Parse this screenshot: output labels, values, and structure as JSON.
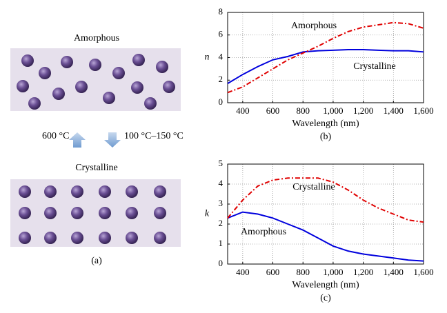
{
  "diagram": {
    "top_label": "Amorphous",
    "bottom_label": "Crystalline",
    "heat_label": "600 °C",
    "cool_label": "100 °C–150 °C",
    "caption": "(a)"
  },
  "chart_data": [
    {
      "type": "line",
      "caption": "(b)",
      "xlabel": "Wavelength (nm)",
      "ylabel": "n",
      "x": [
        300,
        400,
        500,
        600,
        700,
        800,
        900,
        1000,
        1100,
        1200,
        1300,
        1400,
        1500,
        1600
      ],
      "series": [
        {
          "name": "Amorphous",
          "color": "#0000dd",
          "style": "solid",
          "values": [
            1.7,
            2.5,
            3.2,
            3.8,
            4.1,
            4.5,
            4.6,
            4.65,
            4.7,
            4.7,
            4.65,
            4.6,
            4.6,
            4.5
          ]
        },
        {
          "name": "Crystalline",
          "color": "#e00000",
          "style": "dashdot",
          "values": [
            0.9,
            1.4,
            2.2,
            3.0,
            3.8,
            4.4,
            5.0,
            5.7,
            6.3,
            6.7,
            6.9,
            7.1,
            7.0,
            6.6
          ]
        }
      ],
      "xlim": [
        300,
        1600
      ],
      "xticks": [
        400,
        600,
        800,
        {
          "value": 1000,
          "label": "1,000"
        },
        {
          "value": 1200,
          "label": "1,200"
        },
        {
          "value": 1400,
          "label": "1,400"
        },
        {
          "value": 1600,
          "label": "1,600"
        }
      ],
      "ylim": [
        0,
        8
      ],
      "yticks": [
        0,
        2,
        4,
        6,
        8
      ],
      "grid": true
    },
    {
      "type": "line",
      "caption": "(c)",
      "xlabel": "Wavelength (nm)",
      "ylabel": "k",
      "x": [
        300,
        400,
        500,
        600,
        700,
        800,
        900,
        1000,
        1100,
        1200,
        1300,
        1400,
        1500,
        1600
      ],
      "series": [
        {
          "name": "Amorphous",
          "color": "#0000dd",
          "style": "solid",
          "values": [
            2.3,
            2.6,
            2.5,
            2.3,
            2.0,
            1.7,
            1.3,
            0.9,
            0.65,
            0.5,
            0.4,
            0.3,
            0.2,
            0.15
          ]
        },
        {
          "name": "Crystalline",
          "color": "#e00000",
          "style": "dashdot",
          "values": [
            2.3,
            3.2,
            3.9,
            4.2,
            4.3,
            4.3,
            4.3,
            4.1,
            3.7,
            3.2,
            2.8,
            2.5,
            2.2,
            2.1
          ]
        }
      ],
      "xlim": [
        300,
        1600
      ],
      "xticks": [
        400,
        600,
        800,
        {
          "value": 1000,
          "label": "1,000"
        },
        {
          "value": 1200,
          "label": "1,200"
        },
        {
          "value": 1400,
          "label": "1,400"
        },
        {
          "value": 1600,
          "label": "1,600"
        }
      ],
      "ylim": [
        0,
        5
      ],
      "yticks": [
        0,
        1,
        2,
        3,
        4,
        5
      ],
      "grid": true
    }
  ]
}
